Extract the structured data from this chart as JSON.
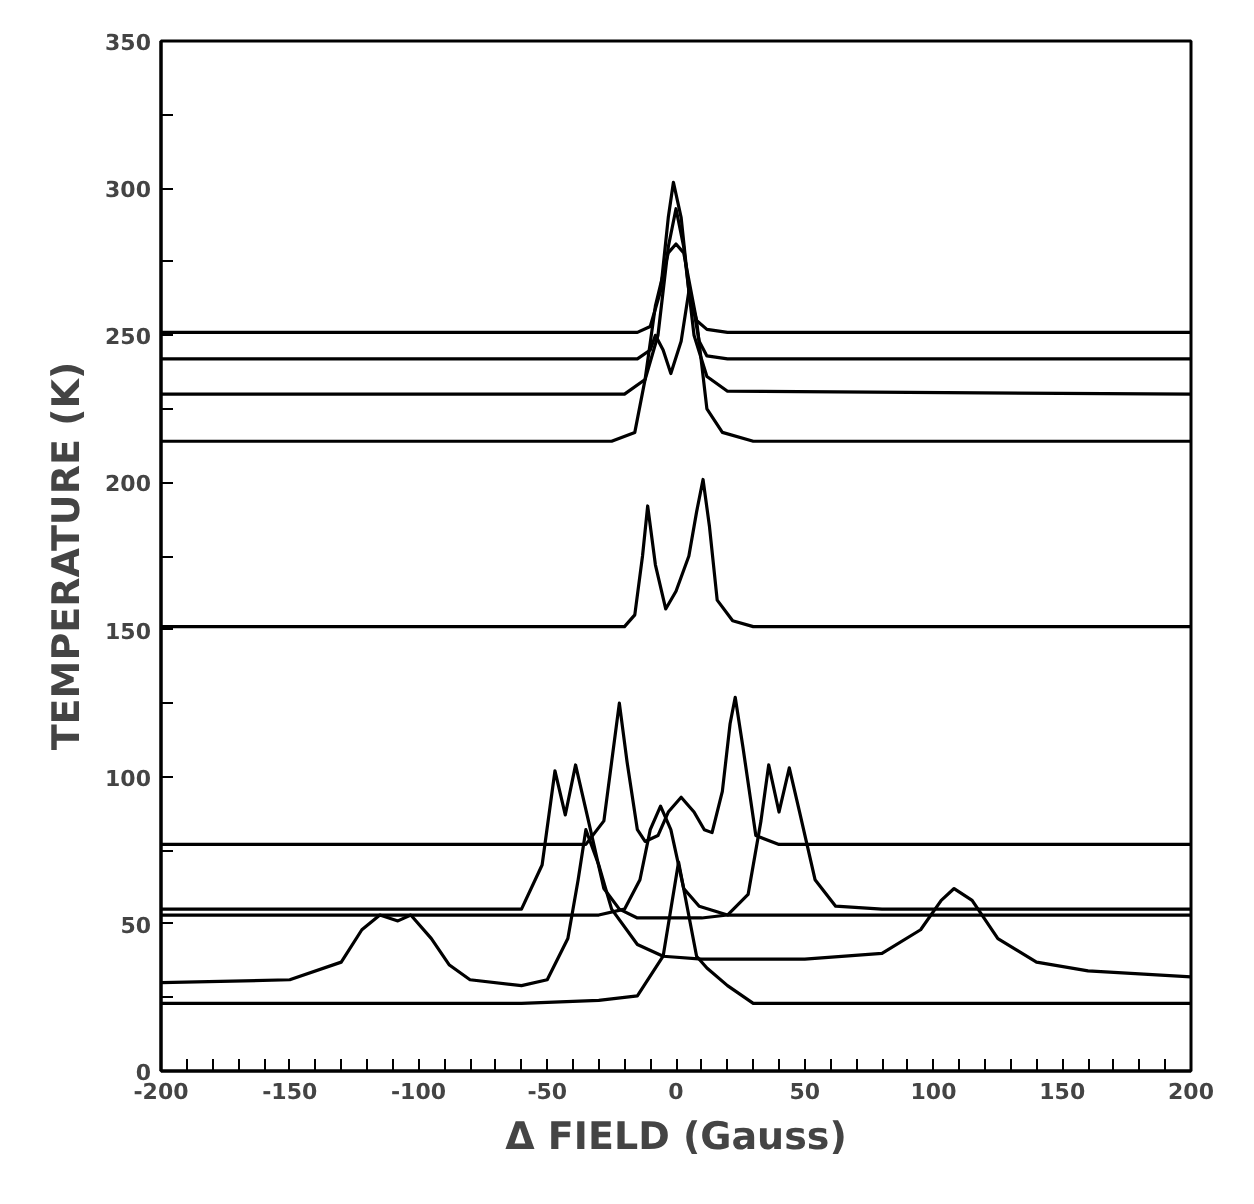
{
  "chart_data": {
    "type": "line",
    "xlabel": "Δ FIELD (Gauss)",
    "ylabel": "TEMPERATURE (K)",
    "xlim": [
      -200,
      200
    ],
    "ylim": [
      0,
      350
    ],
    "xticks": [
      -200,
      {
        "value": -190,
        "label": null
      },
      {
        "value": -180,
        "label": null
      },
      {
        "value": -170,
        "label": null
      },
      {
        "value": -160,
        "label": null
      },
      -150,
      {
        "value": -140,
        "label": null
      },
      {
        "value": -130,
        "label": null
      },
      {
        "value": -120,
        "label": null
      },
      {
        "value": -110,
        "label": null
      },
      -100,
      {
        "value": -90,
        "label": null
      },
      {
        "value": -80,
        "label": null
      },
      {
        "value": -70,
        "label": null
      },
      {
        "value": -60,
        "label": null
      },
      -50,
      {
        "value": -40,
        "label": null
      },
      {
        "value": -30,
        "label": null
      },
      {
        "value": -20,
        "label": null
      },
      {
        "value": -10,
        "label": null
      },
      0,
      {
        "value": 10,
        "label": null
      },
      {
        "value": 20,
        "label": null
      },
      {
        "value": 30,
        "label": null
      },
      {
        "value": 40,
        "label": null
      },
      50,
      {
        "value": 60,
        "label": null
      },
      {
        "value": 70,
        "label": null
      },
      {
        "value": 80,
        "label": null
      },
      {
        "value": 90,
        "label": null
      },
      100,
      {
        "value": 110,
        "label": null
      },
      {
        "value": 120,
        "label": null
      },
      {
        "value": 130,
        "label": null
      },
      {
        "value": 140,
        "label": null
      },
      150,
      {
        "value": 160,
        "label": null
      },
      {
        "value": 170,
        "label": null
      },
      {
        "value": 180,
        "label": null
      },
      {
        "value": 190,
        "label": null
      },
      200
    ],
    "yticks": [
      0,
      {
        "value": 25,
        "label": null
      },
      50,
      {
        "value": 75,
        "label": null
      },
      100,
      {
        "value": 125,
        "label": null
      },
      150,
      {
        "value": 175,
        "label": null
      },
      200,
      {
        "value": 225,
        "label": null
      },
      250,
      {
        "value": 275,
        "label": null
      },
      300,
      {
        "value": 325,
        "label": null
      },
      350
    ],
    "grid": false,
    "marker": "none",
    "line_style": "solid",
    "series": [
      {
        "color": "#000000",
        "x": [
          -200,
          -60,
          -30,
          -15,
          -5,
          1,
          8,
          12,
          20,
          30,
          200
        ],
        "values": [
          23,
          23,
          24,
          25.5,
          39,
          71,
          39,
          35,
          29,
          23,
          23
        ]
      },
      {
        "color": "#000000",
        "x": [
          -200,
          -150,
          -130,
          -122,
          -115,
          -108,
          -103,
          -95,
          -88,
          -80,
          -60,
          -50,
          -42,
          -38,
          -35,
          -30,
          -25,
          -15,
          -5,
          10,
          50,
          80,
          95,
          103,
          108,
          115,
          125,
          140,
          160,
          200
        ],
        "values": [
          30,
          31,
          37,
          48,
          53,
          51,
          53,
          45,
          36,
          31,
          29,
          31,
          45,
          65,
          82,
          70,
          55,
          43,
          39,
          38,
          38,
          40,
          48,
          58,
          62,
          58,
          45,
          37,
          34,
          32
        ]
      },
      {
        "color": "#000000",
        "x": [
          -200,
          -30,
          -20,
          -14,
          -10,
          -6,
          -2,
          3,
          9,
          20,
          200
        ],
        "values": [
          53,
          53,
          55,
          65,
          82,
          90,
          82,
          62,
          56,
          53,
          53
        ]
      },
      {
        "color": "#000000",
        "x": [
          -200,
          -60,
          -52,
          -47,
          -43,
          -39,
          -34,
          -28,
          -22,
          -15,
          0,
          10,
          20,
          28,
          33,
          36,
          40,
          44,
          48,
          54,
          62,
          80,
          200
        ],
        "values": [
          55,
          55,
          70,
          102,
          87,
          104,
          85,
          62,
          55,
          52,
          52,
          52,
          53,
          60,
          85,
          104,
          88,
          103,
          88,
          65,
          56,
          55,
          55
        ]
      },
      {
        "color": "#000000",
        "x": [
          -200,
          -54,
          -35,
          -28,
          -25,
          -22,
          -19,
          -15,
          -12,
          -7,
          -3,
          2,
          7,
          11,
          14,
          18,
          21,
          23,
          26,
          31,
          40,
          200
        ],
        "values": [
          77,
          77,
          77,
          85,
          105,
          125,
          105,
          82,
          78,
          80,
          88,
          93,
          88,
          82,
          81,
          95,
          118,
          127,
          110,
          80,
          77,
          77
        ]
      },
      {
        "color": "#000000",
        "x": [
          -200,
          -20,
          -16,
          -13,
          -11,
          -8,
          -4,
          0,
          5,
          8,
          10.5,
          13,
          16,
          22,
          30,
          200
        ],
        "values": [
          151,
          151,
          155,
          175,
          192,
          172,
          157,
          163,
          175,
          190,
          201,
          185,
          160,
          153,
          151,
          151
        ]
      },
      {
        "color": "#000000",
        "x": [
          -200,
          -25,
          -16,
          -12,
          -8,
          -3,
          0,
          3,
          8,
          12,
          18,
          30,
          200
        ],
        "values": [
          214,
          214,
          217,
          235,
          260,
          278,
          281,
          278,
          255,
          225,
          217,
          214,
          214
        ]
      },
      {
        "color": "#000000",
        "x": [
          -200,
          -20,
          -12,
          -7,
          -3,
          0,
          3,
          7,
          12,
          20,
          200
        ],
        "values": [
          230,
          230,
          235,
          250,
          280,
          293,
          280,
          250,
          236,
          231,
          230
        ]
      },
      {
        "color": "#000000",
        "x": [
          -200,
          -15,
          -10,
          -8,
          -5,
          -2,
          2,
          5,
          7,
          9,
          12,
          20,
          200
        ],
        "values": [
          242,
          242,
          245,
          250,
          245,
          237,
          248,
          265,
          258,
          248,
          243,
          242,
          242
        ]
      },
      {
        "color": "#000000",
        "x": [
          -200,
          -15,
          -10,
          -6,
          -3,
          -1,
          2,
          5,
          8,
          12,
          20,
          200
        ],
        "values": [
          251,
          251,
          253,
          265,
          290,
          302,
          290,
          265,
          255,
          252,
          251,
          251
        ]
      }
    ]
  }
}
